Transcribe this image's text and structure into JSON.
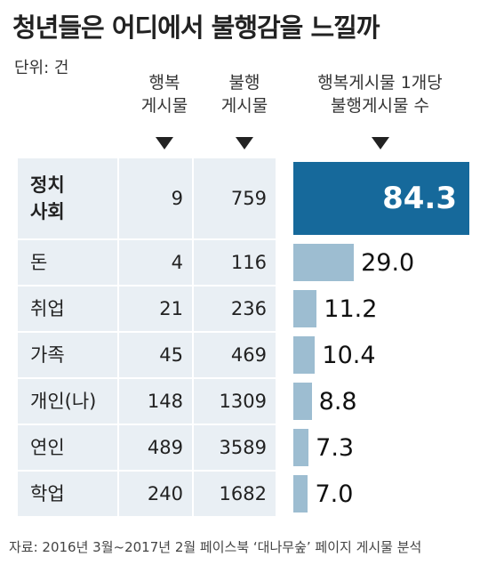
{
  "chart_data": {
    "type": "table-bar",
    "title": "청년들은 어디에서 불행감을 느낄까",
    "unit": "단위: 건",
    "columns": [
      [
        "행복",
        "게시물"
      ],
      [
        "불행",
        "게시물"
      ],
      [
        "행복게시물 1개당",
        "불행게시물 수"
      ]
    ],
    "categories": [
      "정치\n사회",
      "돈",
      "취업",
      "가족",
      "개인(나)",
      "연인",
      "학업"
    ],
    "happy": [
      9,
      4,
      21,
      45,
      148,
      489,
      240
    ],
    "unhappy": [
      759,
      116,
      236,
      469,
      1309,
      3589,
      1682
    ],
    "values": [
      84.3,
      29.0,
      11.2,
      10.4,
      8.8,
      7.3,
      7.0
    ],
    "value_labels": [
      "84.3",
      "29.0",
      "11.2",
      "10.4",
      "8.8",
      "7.3",
      "7.0"
    ],
    "colors": [
      "#16699b",
      "#9dbdd1"
    ],
    "source": "자료: 2016년 3월~2017년 2월 페이스북 ‘대나무숲’ 페이지 게시물 분석"
  }
}
